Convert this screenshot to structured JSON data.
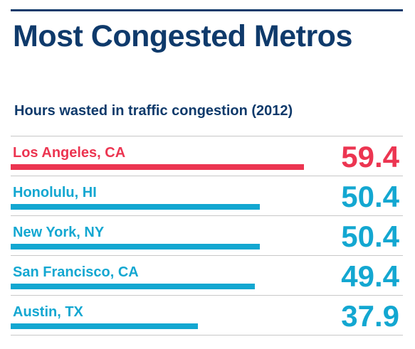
{
  "colors": {
    "title": "#0f3a6b",
    "highlight": "#ec3551",
    "default": "#13a7d1",
    "divider": "#c8c8c8"
  },
  "header": {
    "title": "Most Congested Metros",
    "subtitle": "Hours wasted in traffic congestion (2012)"
  },
  "chart_data": {
    "type": "bar",
    "orientation": "horizontal",
    "title": "Most Congested Metros",
    "subtitle": "Hours wasted in traffic congestion (2012)",
    "categories": [
      "Los Angeles, CA",
      "Honolulu, HI",
      "New York, NY",
      "San Francisco, CA",
      "Austin, TX"
    ],
    "values": [
      59.4,
      50.4,
      50.4,
      49.4,
      37.9
    ],
    "value_labels": [
      "59.4",
      "50.4",
      "50.4",
      "49.4",
      "37.9"
    ],
    "highlighted": [
      "Los Angeles, CA"
    ],
    "xlim": [
      0,
      79.4
    ],
    "grid": false,
    "legend": "none"
  }
}
